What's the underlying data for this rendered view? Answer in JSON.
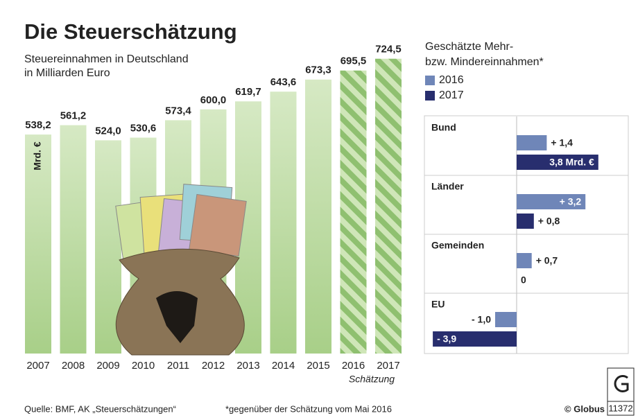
{
  "chart_data": [
    {
      "type": "bar",
      "title": "Die Steuerschätzung",
      "subtitle": [
        "Steuereinnahmen in Deutschland",
        "in Milliarden Euro"
      ],
      "unit_label": "Mrd. €",
      "annotation": "Schätzung",
      "categories": [
        "2007",
        "2008",
        "2009",
        "2010",
        "2011",
        "2012",
        "2013",
        "2014",
        "2015",
        "2016",
        "2017"
      ],
      "values": [
        538.2,
        561.2,
        524.0,
        530.6,
        573.4,
        600.0,
        619.7,
        643.6,
        673.3,
        695.5,
        724.5
      ],
      "value_labels": [
        "538,2",
        "561,2",
        "524,0",
        "530,6",
        "573,4",
        "600,0",
        "619,7",
        "643,6",
        "673,3",
        "695,5",
        "724,5"
      ],
      "estimated": [
        false,
        false,
        false,
        false,
        false,
        false,
        false,
        false,
        false,
        true,
        true
      ],
      "color": "#b9d9a0"
    },
    {
      "type": "hbar",
      "legend_title": [
        "Geschätzte Mehr-",
        "bzw. Mindereinnahmen*"
      ],
      "categories": [
        "Bund",
        "Länder",
        "Gemeinden",
        "EU"
      ],
      "series": [
        {
          "name": "2016",
          "color": "#6f86b8",
          "values": [
            1.4,
            3.2,
            0.7,
            -1.0
          ],
          "value_labels": [
            "+ 1,4",
            "+ 3,2",
            "+ 0,7",
            "- 1,0"
          ]
        },
        {
          "name": "2017",
          "color": "#282e6e",
          "values": [
            3.8,
            0.8,
            0,
            -3.9
          ],
          "value_labels": [
            "3,8 Mrd. €",
            "+ 0,8",
            "0",
            "- 3,9"
          ]
        }
      ]
    }
  ],
  "footer": {
    "source": "Quelle: BMF, AK „Steuerschätzungen“",
    "note": "*gegenüber der Schätzung vom Mai 2016",
    "credit": "© Globus",
    "id": "11372"
  }
}
